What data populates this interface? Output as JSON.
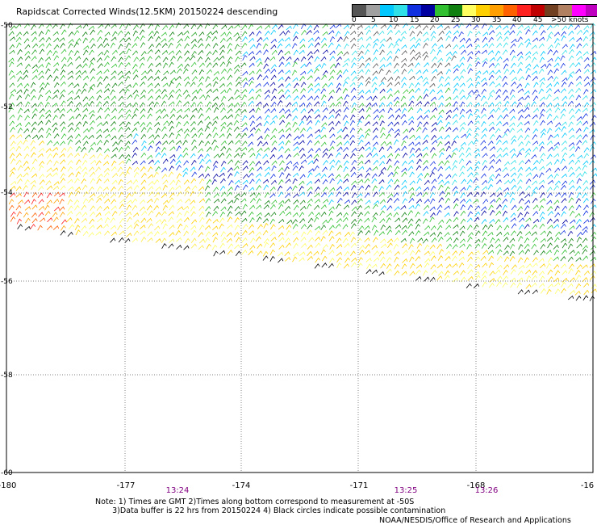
{
  "title": "Rapidscat Corrected Winds(12.5KM) 20150224 descending",
  "colorbar": {
    "labels": [
      "0",
      "5",
      "10",
      "15",
      "20",
      "25",
      "30",
      "35",
      "40",
      "45",
      ">50 knots"
    ],
    "colors": [
      "#555555",
      "#a0a0a0",
      "#00c8ff",
      "#30e0e8",
      "#1030e0",
      "#0000a0",
      "#30c030",
      "#108010",
      "#ffff60",
      "#ffd000",
      "#ffa000",
      "#ff6000",
      "#ff2020",
      "#c00000",
      "#704020",
      "#b08060",
      "#ff00ff",
      "#c000c0",
      "#8000a0"
    ]
  },
  "map": {
    "lat_labels": [
      "-50",
      "-52",
      "-54",
      "-56",
      "-58",
      "-60"
    ],
    "lon_labels": [
      "-180",
      "-177",
      "-174",
      "-171",
      "-168",
      "-16"
    ],
    "times": [
      "13:24",
      "13:25",
      "13:26"
    ],
    "time_color": "#800080"
  },
  "notes": {
    "line1": "Note: 1) Times are GMT 2)Times along bottom correspond to measurement at -50S",
    "line2": "3)Data buffer is 22 hrs from 20150224 4) Black circles indicate possible contamination"
  },
  "credit": "NOAA/NESDIS/Office of Research and Applications"
}
